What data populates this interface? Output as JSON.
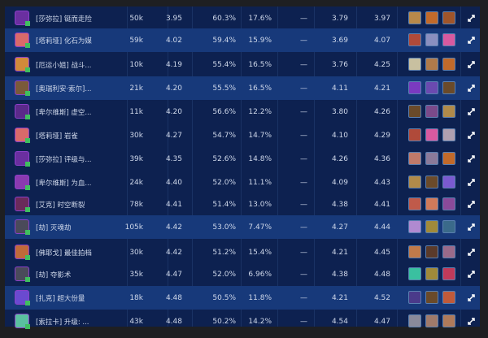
{
  "rows": [
    {
      "name": "[莎弥拉] 铤而走险",
      "plays": "50k",
      "avg": "3.95",
      "top4": "60.3%",
      "win": "17.6%",
      "delta": "—",
      "v1": "3.79",
      "v2": "3.97",
      "colors": [
        "#6a2fa0",
        "#b8894a",
        "#c26a2a",
        "#a0552a"
      ]
    },
    {
      "name": "[塔莉垭] 化石为媒",
      "plays": "59k",
      "avg": "4.02",
      "top4": "59.4%",
      "win": "15.9%",
      "delta": "—",
      "v1": "3.69",
      "v2": "4.07",
      "colors": [
        "#d96a6a",
        "#b04a3a",
        "#8a8fc0",
        "#d85aa0"
      ]
    },
    {
      "name": "[厄运小姐] 战斗...",
      "plays": "10k",
      "avg": "4.19",
      "top4": "55.4%",
      "win": "16.5%",
      "delta": "—",
      "v1": "3.76",
      "v2": "4.25",
      "colors": [
        "#d08a3a",
        "#c8c0a0",
        "#b07a4a",
        "#c26a2a"
      ]
    },
    {
      "name": "[奥瑞利安·索尔]...",
      "plays": "21k",
      "avg": "4.20",
      "top4": "55.5%",
      "win": "16.5%",
      "delta": "—",
      "v1": "4.11",
      "v2": "4.21",
      "colors": [
        "#7a5a3a",
        "#7a3ac0",
        "#6a4ab0",
        "#6a4a2a"
      ]
    },
    {
      "name": "[卑尔维斯] 虚空...",
      "plays": "11k",
      "avg": "4.20",
      "top4": "56.6%",
      "win": "12.2%",
      "delta": "—",
      "v1": "3.80",
      "v2": "4.26",
      "colors": [
        "#5a2a8a",
        "#6a4a2a",
        "#7a4a8a",
        "#b08a4a"
      ]
    },
    {
      "name": "[塔莉垭] 岩雀",
      "plays": "30k",
      "avg": "4.27",
      "top4": "54.7%",
      "win": "14.7%",
      "delta": "—",
      "v1": "4.10",
      "v2": "4.29",
      "colors": [
        "#d96a6a",
        "#b04a3a",
        "#d85aa0",
        "#b0a0b0"
      ]
    },
    {
      "name": "[莎弥拉] 评级与...",
      "plays": "39k",
      "avg": "4.35",
      "top4": "52.6%",
      "win": "14.8%",
      "delta": "—",
      "v1": "4.26",
      "v2": "4.36",
      "colors": [
        "#6a2fa0",
        "#c07a6a",
        "#8a7a9a",
        "#c26a2a"
      ]
    },
    {
      "name": "[卑尔维斯] 为血...",
      "plays": "24k",
      "avg": "4.40",
      "top4": "52.0%",
      "win": "11.1%",
      "delta": "—",
      "v1": "4.09",
      "v2": "4.43",
      "colors": [
        "#8a3ab0",
        "#b08a4a",
        "#6a4a2a",
        "#7a5ad0"
      ]
    },
    {
      "name": "[艾克] 时空断裂",
      "plays": "78k",
      "avg": "4.41",
      "top4": "51.4%",
      "win": "13.0%",
      "delta": "—",
      "v1": "4.38",
      "v2": "4.41",
      "colors": [
        "#6a2a5a",
        "#c05a4a",
        "#d07a5a",
        "#8a4a9a"
      ]
    },
    {
      "name": "[劫] 灭魂劫",
      "plays": "105k",
      "avg": "4.42",
      "top4": "53.0%",
      "win": "7.47%",
      "delta": "—",
      "v1": "4.27",
      "v2": "4.44",
      "colors": [
        "#4a4a5a",
        "#b08ad0",
        "#a08a3a",
        "#3a6a8a"
      ]
    },
    {
      "name": "[佛耶戈] 最佳拍档",
      "plays": "30k",
      "avg": "4.42",
      "top4": "51.2%",
      "win": "15.4%",
      "delta": "—",
      "v1": "4.21",
      "v2": "4.45",
      "colors": [
        "#c06a3a",
        "#c07a4a",
        "#5a3a2a",
        "#9a6a8a"
      ]
    },
    {
      "name": "[劫] 夺影术",
      "plays": "35k",
      "avg": "4.47",
      "top4": "52.0%",
      "win": "6.96%",
      "delta": "—",
      "v1": "4.38",
      "v2": "4.48",
      "colors": [
        "#4a4a5a",
        "#3ac0a0",
        "#a08a3a",
        "#c03a5a"
      ]
    },
    {
      "name": "[扎克] 超大份量",
      "plays": "18k",
      "avg": "4.48",
      "top4": "50.5%",
      "win": "11.8%",
      "delta": "—",
      "v1": "4.21",
      "v2": "4.52",
      "colors": [
        "#6a4ad0",
        "#4a3a8a",
        "#6a4a2a",
        "#c05a3a"
      ]
    },
    {
      "name": "[索拉卡] 升级: ...",
      "plays": "43k",
      "avg": "4.48",
      "top4": "50.2%",
      "win": "14.2%",
      "delta": "—",
      "v1": "4.54",
      "v2": "4.47",
      "colors": [
        "#5ac0a0",
        "#8a8a9a",
        "#a07a6a",
        "#b07a5a"
      ]
    }
  ],
  "highlight_rows": [
    1,
    3,
    9,
    12
  ],
  "expand_icon": "↗↙"
}
